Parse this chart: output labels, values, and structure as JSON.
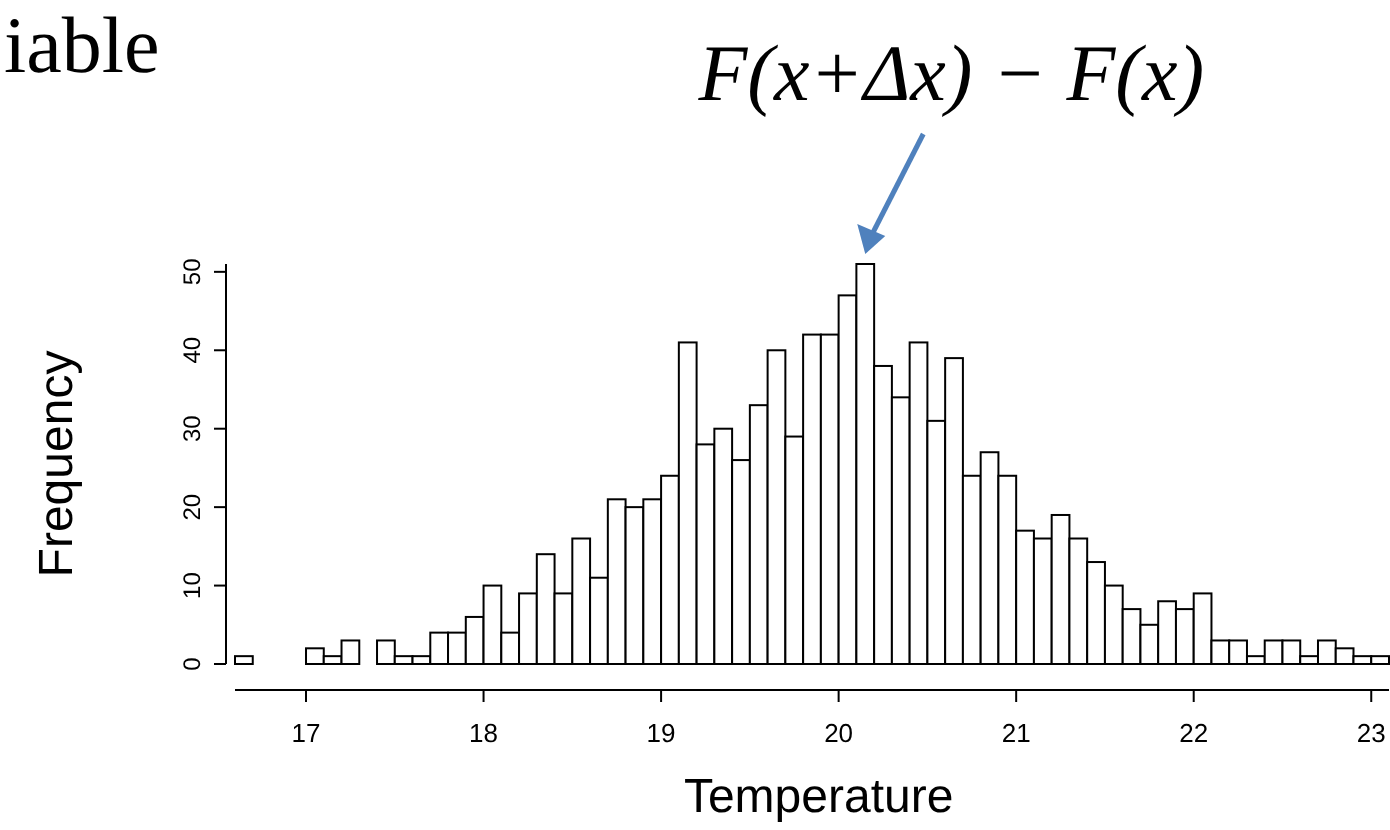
{
  "chart_data": {
    "type": "histogram",
    "title": "iable",
    "xlabel": "Temperature",
    "ylabel": "Frequency",
    "annotations": [
      {
        "text": "F(x+Δx) − F(x)",
        "x": 20.15,
        "y": 51
      }
    ],
    "bins": [
      16.6,
      16.7,
      16.8,
      16.9,
      17.0,
      17.1,
      17.2,
      17.3,
      17.4,
      17.5,
      17.6,
      17.7,
      17.8,
      17.9,
      18.0,
      18.1,
      18.2,
      18.3,
      18.4,
      18.5,
      18.6,
      18.7,
      18.8,
      18.9,
      19.0,
      19.1,
      19.2,
      19.3,
      19.4,
      19.5,
      19.6,
      19.7,
      19.8,
      19.9,
      20.0,
      20.1,
      20.2,
      20.3,
      20.4,
      20.5,
      20.6,
      20.7,
      20.8,
      20.9,
      21.0,
      21.1,
      21.2,
      21.3,
      21.4,
      21.5,
      21.6,
      21.7,
      21.8,
      21.9,
      22.0,
      22.1,
      22.2,
      22.3,
      22.4,
      22.5,
      22.6,
      22.7,
      22.8,
      22.9,
      23.0,
      23.1
    ],
    "values": [
      1,
      0,
      0,
      0,
      2,
      1,
      3,
      0,
      3,
      1,
      1,
      4,
      4,
      6,
      10,
      4,
      9,
      14,
      9,
      16,
      11,
      21,
      20,
      21,
      24,
      41,
      28,
      30,
      26,
      33,
      40,
      29,
      42,
      42,
      47,
      51,
      38,
      34,
      41,
      31,
      39,
      24,
      27,
      24,
      17,
      16,
      19,
      16,
      13,
      10,
      7,
      5,
      8,
      7,
      9,
      3,
      3,
      1,
      3,
      3,
      1,
      3,
      2,
      1,
      1
    ],
    "color": "#ffffff",
    "xlim": [
      16.6,
      23.1
    ],
    "xticks": [
      17,
      18,
      19,
      20,
      21,
      22,
      23
    ],
    "ylim": [
      0,
      51
    ],
    "yticks": [
      0,
      10,
      20,
      30,
      40,
      50
    ],
    "grid": false
  }
}
